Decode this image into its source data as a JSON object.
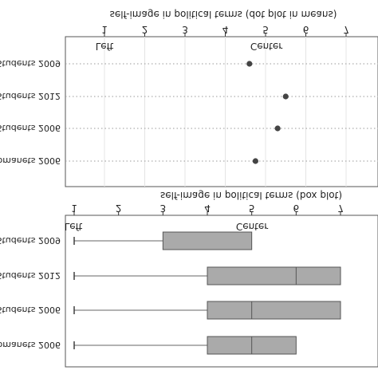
{
  "chart_data": [
    {
      "type": "scatter",
      "orientation": "mirrored",
      "title": "self-image in political terms (dot plot in means)",
      "axis_ticks": [
        "1",
        "2",
        "3",
        "4",
        "5",
        "6",
        "7"
      ],
      "xlim": [
        1,
        7
      ],
      "anchors": {
        "left": "Left",
        "center": "Center"
      },
      "categories": [
        "Students 2009",
        "Students 2012",
        "Students 2006",
        "Romanets 2006"
      ],
      "values": [
        4.6,
        5.5,
        5.3,
        4.75
      ],
      "grid": true,
      "marker_color": "#444444"
    },
    {
      "type": "box",
      "orientation": "mirrored",
      "title": "self-image in political terms (box plot)",
      "axis_ticks": [
        "1",
        "2",
        "3",
        "4",
        "5",
        "6",
        "7"
      ],
      "xlim": [
        1,
        7
      ],
      "anchors": {
        "left": "Left",
        "center": "Center"
      },
      "categories": [
        "Students 2009",
        "Students 2012",
        "Students 2006",
        "Romanets 2006"
      ],
      "boxes": [
        {
          "min": 1,
          "q1": 3,
          "median": 5,
          "q3": 5,
          "max": 5
        },
        {
          "min": 1,
          "q1": 4,
          "median": 6,
          "q3": 7,
          "max": 7
        },
        {
          "min": 1,
          "q1": 4,
          "median": 5,
          "q3": 7,
          "max": 7
        },
        {
          "min": 1,
          "q1": 4,
          "median": 5,
          "q3": 6,
          "max": 6
        }
      ],
      "grid": false,
      "box_color": "#aaaaaa"
    }
  ]
}
